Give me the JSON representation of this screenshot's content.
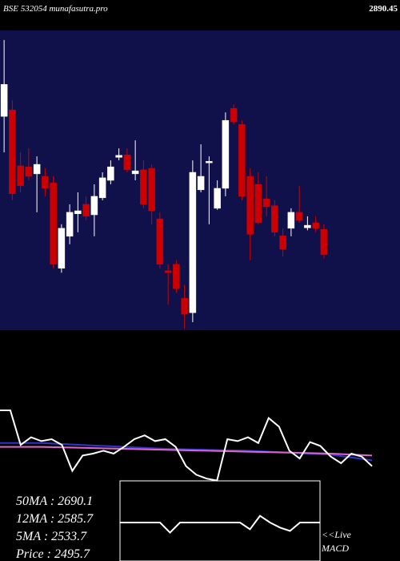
{
  "header": {
    "title": "BSE 532054  munafasutra.pro",
    "top_price": "2890.45"
  },
  "stats": [
    "50MA : 2690.1",
    "12MA : 2585.7",
    "5MA : 2533.7",
    "Price   : 2495.7"
  ],
  "macd_label": [
    "<<Live",
    "MACD"
  ],
  "chart_data": [
    {
      "type": "candlestick",
      "background": "#10104a",
      "up_color": "#ffffff",
      "down_color": "#cc0000",
      "ylim": [
        2300,
        2900
      ],
      "open": [
        2728,
        2741,
        2629,
        2627,
        2613,
        2608,
        2595,
        2424,
        2488,
        2533,
        2552,
        2531,
        2565,
        2600,
        2646,
        2651,
        2613,
        2621,
        2624,
        2523,
        2419,
        2432,
        2364,
        2335,
        2581,
        2635,
        2544,
        2584,
        2744,
        2712,
        2608,
        2592,
        2563,
        2549,
        2489,
        2504,
        2536,
        2505,
        2515,
        2502
      ],
      "high": [
        2881,
        2760,
        2656,
        2664,
        2648,
        2624,
        2608,
        2512,
        2552,
        2576,
        2568,
        2592,
        2616,
        2640,
        2664,
        2664,
        2680,
        2640,
        2632,
        2536,
        2432,
        2440,
        2391,
        2640,
        2672,
        2648,
        2600,
        2736,
        2752,
        2720,
        2624,
        2616,
        2608,
        2560,
        2504,
        2544,
        2589,
        2528,
        2528,
        2512
      ],
      "low": [
        2656,
        2560,
        2576,
        2600,
        2536,
        2568,
        2424,
        2415,
        2472,
        2496,
        2520,
        2488,
        2560,
        2592,
        2640,
        2616,
        2600,
        2544,
        2512,
        2424,
        2351,
        2375,
        2303,
        2316,
        2576,
        2512,
        2541,
        2568,
        2712,
        2560,
        2440,
        2512,
        2528,
        2488,
        2448,
        2488,
        2515,
        2500,
        2496,
        2444
      ],
      "close": [
        2792,
        2573,
        2589,
        2608,
        2632,
        2584,
        2432,
        2504,
        2536,
        2539,
        2528,
        2568,
        2605,
        2627,
        2650,
        2621,
        2619,
        2552,
        2539,
        2432,
        2415,
        2383,
        2332,
        2616,
        2608,
        2638,
        2584,
        2720,
        2717,
        2568,
        2492,
        2515,
        2547,
        2496,
        2462,
        2536,
        2520,
        2510,
        2504,
        2451
      ]
    },
    {
      "type": "line",
      "ylim": [
        0,
        100
      ],
      "series": [
        {
          "color": "#3333cc",
          "values": [
            56,
            56,
            54,
            52,
            50,
            49,
            48,
            46,
            44,
            38
          ]
        },
        {
          "color": "#dd66cc",
          "values": [
            52,
            52,
            51,
            50,
            49,
            48,
            47,
            46,
            45,
            43
          ]
        },
        {
          "color": "#ffffff",
          "values": [
            90,
            90,
            54,
            62,
            58,
            60,
            54,
            27,
            43,
            45,
            48,
            45,
            52,
            60,
            64,
            58,
            60,
            52,
            32,
            23,
            19,
            17,
            60,
            58,
            62,
            56,
            82,
            73,
            48,
            40,
            57,
            53,
            42,
            35,
            45,
            42,
            32
          ]
        }
      ]
    },
    {
      "type": "line",
      "ylim": [
        -1,
        1
      ],
      "series": [
        {
          "color": "#ffffff",
          "values": [
            0,
            0,
            0,
            0,
            0,
            -0.3,
            0,
            0,
            0,
            0,
            0,
            0,
            0,
            -0.2,
            0.2,
            0,
            -0.15,
            -0.25,
            0,
            0,
            0
          ]
        }
      ]
    }
  ]
}
